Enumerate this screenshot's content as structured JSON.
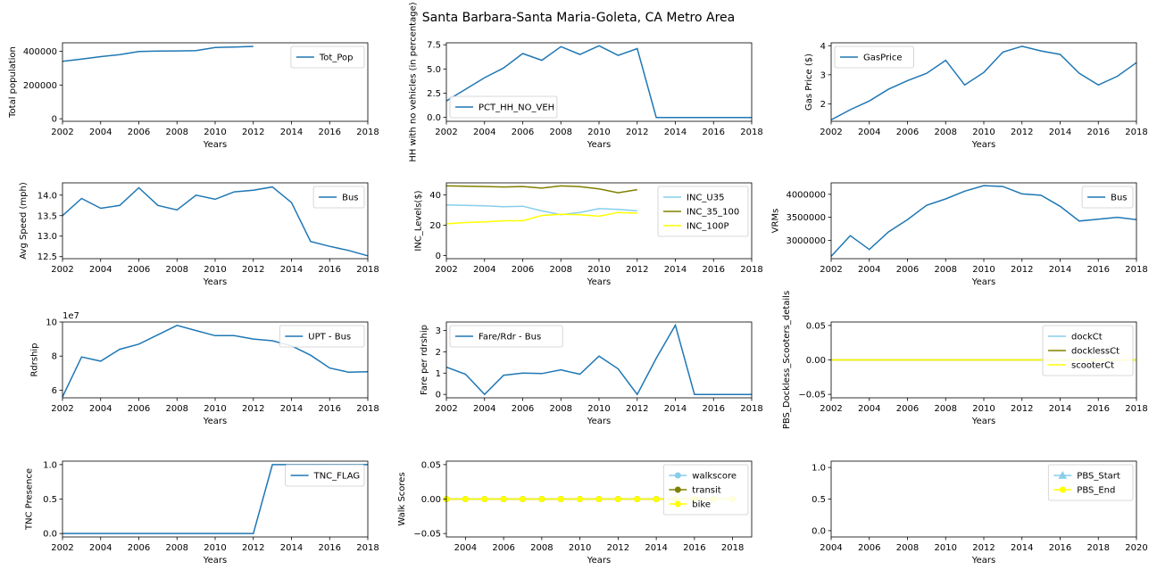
{
  "figure_title": "Santa Barbara-Santa Maria-Goleta, CA Metro Area",
  "colors": {
    "blue": "#1f77b4",
    "skyblue": "#87ceeb",
    "olive": "#808000",
    "yellow": "#ffff00"
  },
  "chart_data": [
    {
      "type": "line",
      "xlabel": "Years",
      "ylabel": "Total population",
      "xlim": [
        2002,
        2018
      ],
      "ylim": [
        -15000,
        450000
      ],
      "xticks": [
        "2002",
        "2004",
        "2006",
        "2008",
        "2010",
        "2012",
        "2014",
        "2016",
        "2018"
      ],
      "xtick_vals": [
        2002,
        2004,
        2006,
        2008,
        2010,
        2012,
        2014,
        2016,
        2018
      ],
      "yticks": [
        "0",
        "200000",
        "400000"
      ],
      "ytick_vals": [
        0,
        200000,
        400000
      ],
      "legend": "upper right",
      "series": [
        {
          "name": "Tot_Pop",
          "color": "#1f77b4",
          "marker": "none",
          "x": [
            2002,
            2003,
            2004,
            2005,
            2006,
            2007,
            2008,
            2009,
            2010,
            2011,
            2012
          ],
          "y": [
            340000,
            354000,
            368000,
            380000,
            398000,
            401000,
            402000,
            404000,
            422000,
            425000,
            429000
          ]
        }
      ]
    },
    {
      "type": "line",
      "xlabel": "Years",
      "ylabel": "HH with no vehicles (in percentage)",
      "xlim": [
        2002,
        2018
      ],
      "ylim": [
        -0.4,
        7.7
      ],
      "xticks": [
        "2002",
        "2004",
        "2006",
        "2008",
        "2010",
        "2012",
        "2014",
        "2016",
        "2018"
      ],
      "xtick_vals": [
        2002,
        2004,
        2006,
        2008,
        2010,
        2012,
        2014,
        2016,
        2018
      ],
      "yticks": [
        "0.0",
        "2.5",
        "5.0",
        "7.5"
      ],
      "ytick_vals": [
        0,
        2.5,
        5,
        7.5
      ],
      "legend": "lower left",
      "series": [
        {
          "name": "PCT_HH_NO_VEH",
          "color": "#1f77b4",
          "marker": "none",
          "x": [
            2002,
            2003,
            2004,
            2005,
            2006,
            2007,
            2008,
            2009,
            2010,
            2011,
            2012,
            2013,
            2014,
            2015,
            2016,
            2017,
            2018
          ],
          "y": [
            1.7,
            2.9,
            4.1,
            5.1,
            6.6,
            5.9,
            7.3,
            6.5,
            7.4,
            6.4,
            7.1,
            0,
            0,
            0,
            0,
            0,
            0
          ]
        }
      ]
    },
    {
      "type": "line",
      "xlabel": "Years",
      "ylabel": "Gas Price ($)",
      "xlim": [
        2002,
        2018
      ],
      "ylim": [
        1.4,
        4.1
      ],
      "xticks": [
        "2002",
        "2004",
        "2006",
        "2008",
        "2010",
        "2012",
        "2014",
        "2016",
        "2018"
      ],
      "xtick_vals": [
        2002,
        2004,
        2006,
        2008,
        2010,
        2012,
        2014,
        2016,
        2018
      ],
      "yticks": [
        "2",
        "3",
        "4"
      ],
      "ytick_vals": [
        2,
        3,
        4
      ],
      "legend": "upper left",
      "series": [
        {
          "name": "GasPrice",
          "color": "#1f77b4",
          "marker": "none",
          "x": [
            2002,
            2003,
            2004,
            2005,
            2006,
            2007,
            2008,
            2009,
            2010,
            2011,
            2012,
            2013,
            2014,
            2015,
            2016,
            2017,
            2018
          ],
          "y": [
            1.45,
            1.8,
            2.1,
            2.5,
            2.8,
            3.05,
            3.5,
            2.65,
            3.08,
            3.78,
            3.98,
            3.82,
            3.7,
            3.05,
            2.65,
            2.95,
            3.42
          ]
        }
      ]
    },
    {
      "type": "line",
      "xlabel": "Years",
      "ylabel": "Avg Speed (mph)",
      "xlim": [
        2002,
        2018
      ],
      "ylim": [
        12.45,
        14.3
      ],
      "xticks": [
        "2002",
        "2004",
        "2006",
        "2008",
        "2010",
        "2012",
        "2014",
        "2016",
        "2018"
      ],
      "xtick_vals": [
        2002,
        2004,
        2006,
        2008,
        2010,
        2012,
        2014,
        2016,
        2018
      ],
      "yticks": [
        "12.5",
        "13.0",
        "13.5",
        "14.0"
      ],
      "ytick_vals": [
        12.5,
        13,
        13.5,
        14
      ],
      "legend": "upper right",
      "series": [
        {
          "name": "Bus",
          "color": "#1f77b4",
          "marker": "none",
          "x": [
            2002,
            2003,
            2004,
            2005,
            2006,
            2007,
            2008,
            2009,
            2010,
            2011,
            2012,
            2013,
            2014,
            2015,
            2016,
            2017,
            2018
          ],
          "y": [
            13.5,
            13.92,
            13.68,
            13.75,
            14.18,
            13.75,
            13.64,
            14.0,
            13.9,
            14.08,
            14.12,
            14.2,
            13.82,
            12.87,
            12.75,
            12.65,
            12.52
          ]
        }
      ]
    },
    {
      "type": "line",
      "xlabel": "Years",
      "ylabel": "INC_Levels($)",
      "xlim": [
        2002,
        2018
      ],
      "ylim": [
        -2,
        48
      ],
      "xticks": [
        "2002",
        "2004",
        "2006",
        "2008",
        "2010",
        "2012",
        "2014",
        "2016",
        "2018"
      ],
      "xtick_vals": [
        2002,
        2004,
        2006,
        2008,
        2010,
        2012,
        2014,
        2016,
        2018
      ],
      "yticks": [
        "0",
        "20",
        "40"
      ],
      "ytick_vals": [
        0,
        20,
        40
      ],
      "legend": "upper right",
      "series": [
        {
          "name": "INC_U35",
          "color": "#87ceeb",
          "marker": "none",
          "x": [
            2002,
            2003,
            2004,
            2005,
            2006,
            2007,
            2008,
            2009,
            2010,
            2011,
            2012
          ],
          "y": [
            33.5,
            33.2,
            32.8,
            32.3,
            32.6,
            29.5,
            27,
            28.5,
            31,
            30.5,
            29.5
          ]
        },
        {
          "name": "INC_35_100",
          "color": "#808000",
          "marker": "none",
          "x": [
            2002,
            2003,
            2004,
            2005,
            2006,
            2007,
            2008,
            2009,
            2010,
            2011,
            2012
          ],
          "y": [
            46,
            45.8,
            45.6,
            45.3,
            45.6,
            44.5,
            46,
            45.5,
            44,
            41.5,
            43.5
          ]
        },
        {
          "name": "INC_100P",
          "color": "#ffff00",
          "marker": "none",
          "x": [
            2002,
            2003,
            2004,
            2005,
            2006,
            2007,
            2008,
            2009,
            2010,
            2011,
            2012
          ],
          "y": [
            21,
            21.8,
            22.3,
            23,
            23,
            26.5,
            27.3,
            27,
            26,
            28.5,
            28
          ]
        }
      ]
    },
    {
      "type": "line",
      "xlabel": "Years",
      "ylabel": "VRMs",
      "xlim": [
        2002,
        2018
      ],
      "ylim": [
        2600000,
        4250000
      ],
      "xticks": [
        "2002",
        "2004",
        "2006",
        "2008",
        "2010",
        "2012",
        "2014",
        "2016",
        "2018"
      ],
      "xtick_vals": [
        2002,
        2004,
        2006,
        2008,
        2010,
        2012,
        2014,
        2016,
        2018
      ],
      "yticks": [
        "3000000",
        "3500000",
        "4000000"
      ],
      "ytick_vals": [
        3000000,
        3500000,
        4000000
      ],
      "legend": "upper right",
      "series": [
        {
          "name": "Bus",
          "color": "#1f77b4",
          "marker": "none",
          "x": [
            2002,
            2003,
            2004,
            2005,
            2006,
            2007,
            2008,
            2009,
            2010,
            2011,
            2012,
            2013,
            2014,
            2015,
            2016,
            2017,
            2018
          ],
          "y": [
            2650000,
            3100000,
            2800000,
            3180000,
            3450000,
            3760000,
            3900000,
            4070000,
            4190000,
            4170000,
            4010000,
            3980000,
            3740000,
            3420000,
            3460000,
            3500000,
            3450000
          ]
        }
      ]
    },
    {
      "type": "line",
      "xlabel": "Years",
      "ylabel": "Rdrship",
      "offset_label": "1e7",
      "xlim": [
        2002,
        2018
      ],
      "ylim": [
        5.55,
        10.0
      ],
      "xticks": [
        "2002",
        "2004",
        "2006",
        "2008",
        "2010",
        "2012",
        "2014",
        "2016",
        "2018"
      ],
      "xtick_vals": [
        2002,
        2004,
        2006,
        2008,
        2010,
        2012,
        2014,
        2016,
        2018
      ],
      "yticks": [
        "6",
        "8",
        "10"
      ],
      "ytick_vals": [
        6,
        8,
        10
      ],
      "legend": "upper right",
      "series": [
        {
          "name": "UPT - Bus",
          "color": "#1f77b4",
          "marker": "none",
          "x": [
            2002,
            2003,
            2004,
            2005,
            2006,
            2007,
            2008,
            2009,
            2010,
            2011,
            2012,
            2013,
            2014,
            2015,
            2016,
            2017,
            2018
          ],
          "y": [
            5.6,
            7.95,
            7.7,
            8.4,
            8.7,
            9.25,
            9.8,
            9.5,
            9.2,
            9.2,
            9.0,
            8.9,
            8.6,
            8.05,
            7.3,
            7.05,
            7.08
          ]
        }
      ]
    },
    {
      "type": "line",
      "xlabel": "Years",
      "ylabel": "Fare per rdrship",
      "xlim": [
        2002,
        2018
      ],
      "ylim": [
        -0.16,
        3.4
      ],
      "xticks": [
        "2002",
        "2004",
        "2006",
        "2008",
        "2010",
        "2012",
        "2014",
        "2016",
        "2018"
      ],
      "xtick_vals": [
        2002,
        2004,
        2006,
        2008,
        2010,
        2012,
        2014,
        2016,
        2018
      ],
      "yticks": [
        "0",
        "1",
        "2",
        "3"
      ],
      "ytick_vals": [
        0,
        1,
        2,
        3
      ],
      "legend": "upper left",
      "series": [
        {
          "name": "Fare/Rdr - Bus",
          "color": "#1f77b4",
          "marker": "none",
          "x": [
            2002,
            2003,
            2004,
            2005,
            2006,
            2007,
            2008,
            2009,
            2010,
            2011,
            2012,
            2013,
            2014,
            2015,
            2016,
            2017,
            2018
          ],
          "y": [
            1.28,
            0.95,
            0.0,
            0.9,
            1.0,
            0.98,
            1.15,
            0.95,
            1.8,
            1.2,
            0.0,
            1.7,
            3.25,
            0.0,
            0.0,
            0.0,
            0.0
          ]
        }
      ]
    },
    {
      "type": "line",
      "xlabel": "Years",
      "ylabel": "PBS_Dockless_Scooters_details",
      "xlim": [
        2002,
        2018
      ],
      "ylim": [
        -0.055,
        0.055
      ],
      "xticks": [
        "2002",
        "2004",
        "2006",
        "2008",
        "2010",
        "2012",
        "2014",
        "2016",
        "2018"
      ],
      "xtick_vals": [
        2002,
        2004,
        2006,
        2008,
        2010,
        2012,
        2014,
        2016,
        2018
      ],
      "yticks": [
        "−0.05",
        "0.00",
        "0.05"
      ],
      "ytick_vals": [
        -0.05,
        0,
        0.05
      ],
      "legend": "upper right",
      "series": [
        {
          "name": "dockCt",
          "color": "#87ceeb",
          "marker": "none",
          "x": [
            2002,
            2018
          ],
          "y": [
            0,
            0
          ]
        },
        {
          "name": "docklessCt",
          "color": "#808000",
          "marker": "none",
          "x": [
            2002,
            2018
          ],
          "y": [
            0,
            0
          ]
        },
        {
          "name": "scooterCt",
          "color": "#ffff00",
          "marker": "none",
          "x": [
            2002,
            2018
          ],
          "y": [
            0,
            0
          ]
        }
      ]
    },
    {
      "type": "line",
      "xlabel": "Years",
      "ylabel": "TNC Presence",
      "xlim": [
        2002,
        2018
      ],
      "ylim": [
        -0.05,
        1.05
      ],
      "xticks": [
        "2002",
        "2004",
        "2006",
        "2008",
        "2010",
        "2012",
        "2014",
        "2016",
        "2018"
      ],
      "xtick_vals": [
        2002,
        2004,
        2006,
        2008,
        2010,
        2012,
        2014,
        2016,
        2018
      ],
      "yticks": [
        "0.0",
        "0.5",
        "1.0"
      ],
      "ytick_vals": [
        0,
        0.5,
        1
      ],
      "legend": "upper right",
      "series": [
        {
          "name": "TNC_FLAG",
          "color": "#1f77b4",
          "marker": "none",
          "x": [
            2002,
            2003,
            2004,
            2005,
            2006,
            2007,
            2008,
            2009,
            2010,
            2011,
            2012,
            2013,
            2014,
            2015,
            2016,
            2017,
            2018
          ],
          "y": [
            0,
            0,
            0,
            0,
            0,
            0,
            0,
            0,
            0,
            0,
            0,
            1,
            1,
            1,
            1,
            1,
            1
          ]
        }
      ]
    },
    {
      "type": "line",
      "xlabel": "Years",
      "ylabel": "Walk Scores",
      "xlim": [
        2003,
        2019
      ],
      "ylim": [
        -0.055,
        0.055
      ],
      "xticks": [
        "2004",
        "2006",
        "2008",
        "2010",
        "2012",
        "2014",
        "2016",
        "2018"
      ],
      "xtick_vals": [
        2004,
        2006,
        2008,
        2010,
        2012,
        2014,
        2016,
        2018
      ],
      "yticks": [
        "−0.05",
        "0.00",
        "0.05"
      ],
      "ytick_vals": [
        -0.05,
        0,
        0.05
      ],
      "legend": "upper right",
      "series": [
        {
          "name": "walkscore",
          "color": "#87ceeb",
          "marker": "circle",
          "x": [
            2003,
            2004,
            2005,
            2006,
            2007,
            2008,
            2009,
            2010,
            2011,
            2012,
            2013,
            2014,
            2015,
            2016,
            2017,
            2018
          ],
          "y": [
            0,
            0,
            0,
            0,
            0,
            0,
            0,
            0,
            0,
            0,
            0,
            0,
            0,
            0,
            0,
            0
          ]
        },
        {
          "name": "transit",
          "color": "#808000",
          "marker": "circle",
          "x": [
            2003,
            2004,
            2005,
            2006,
            2007,
            2008,
            2009,
            2010,
            2011,
            2012,
            2013,
            2014,
            2015,
            2016,
            2017,
            2018
          ],
          "y": [
            0,
            0,
            0,
            0,
            0,
            0,
            0,
            0,
            0,
            0,
            0,
            0,
            0,
            0,
            0,
            0
          ]
        },
        {
          "name": "bike",
          "color": "#ffff00",
          "marker": "circle",
          "x": [
            2003,
            2004,
            2005,
            2006,
            2007,
            2008,
            2009,
            2010,
            2011,
            2012,
            2013,
            2014,
            2015,
            2016,
            2017,
            2018
          ],
          "y": [
            0,
            0,
            0,
            0,
            0,
            0,
            0,
            0,
            0,
            0,
            0,
            0,
            0,
            0,
            0,
            0
          ]
        }
      ]
    },
    {
      "type": "line",
      "xlabel": "Years",
      "ylabel": "",
      "xlim": [
        2004,
        2020
      ],
      "ylim": [
        -0.1,
        1.1
      ],
      "xticks": [
        "2004",
        "2006",
        "2008",
        "2010",
        "2012",
        "2014",
        "2016",
        "2018",
        "2020"
      ],
      "xtick_vals": [
        2004,
        2006,
        2008,
        2010,
        2012,
        2014,
        2016,
        2018,
        2020
      ],
      "yticks": [
        "0.0",
        "0.5",
        "1.0"
      ],
      "ytick_vals": [
        0,
        0.5,
        1
      ],
      "legend": "upper right",
      "series": [
        {
          "name": "PBS_Start",
          "color": "#87ceeb",
          "marker": "triangle",
          "x": [],
          "y": []
        },
        {
          "name": "PBS_End",
          "color": "#ffff00",
          "marker": "circle",
          "x": [],
          "y": []
        }
      ]
    }
  ]
}
